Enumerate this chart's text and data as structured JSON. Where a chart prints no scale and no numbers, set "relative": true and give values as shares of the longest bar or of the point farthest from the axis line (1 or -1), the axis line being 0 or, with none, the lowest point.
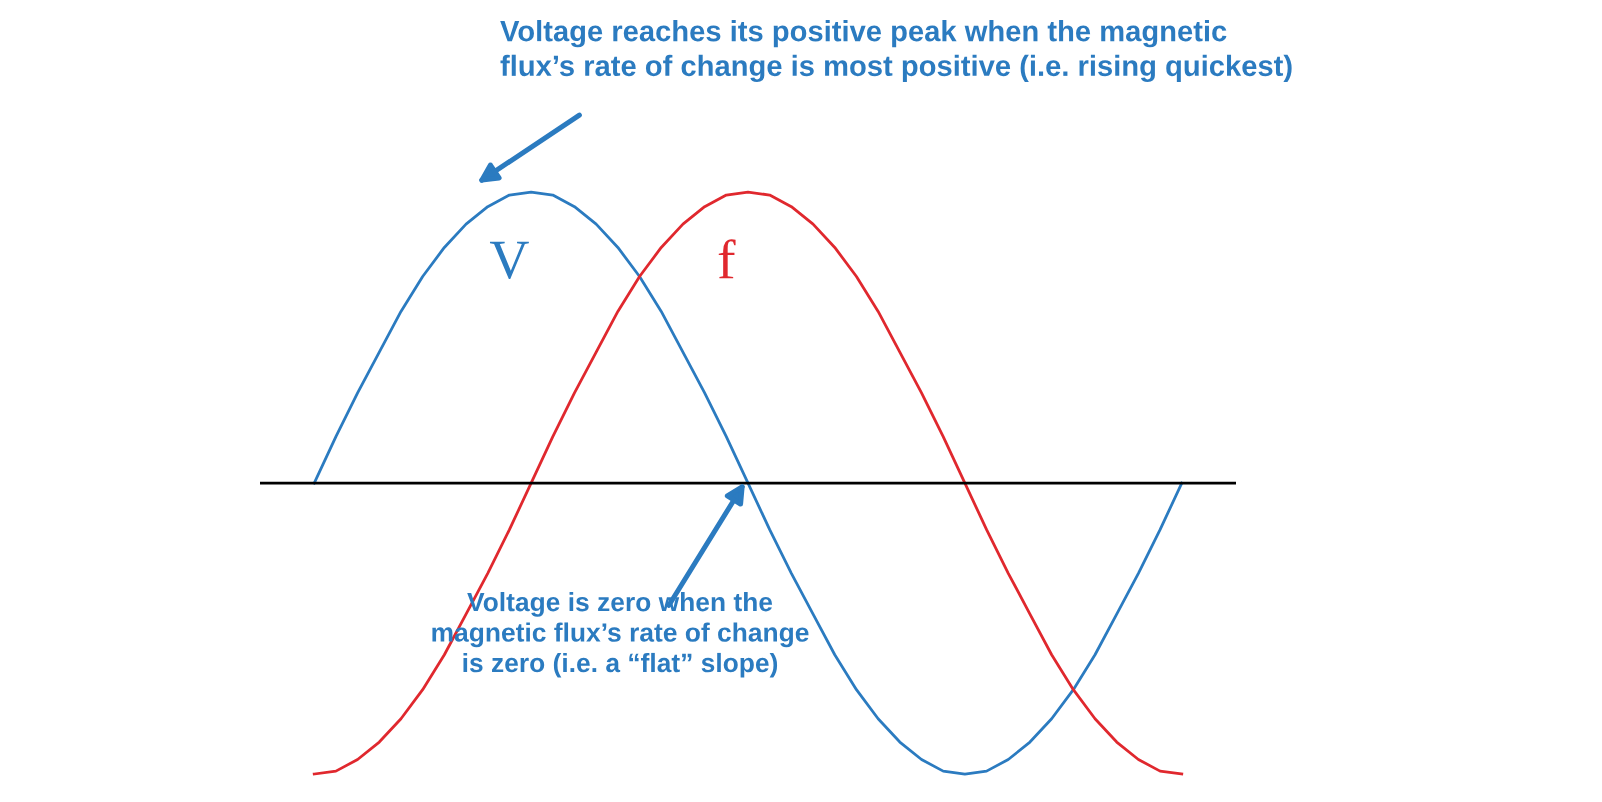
{
  "chart_data": {
    "type": "line",
    "relative": true,
    "categories": [
      null,
      null,
      null,
      null,
      null,
      null,
      null,
      null,
      null,
      null,
      null,
      null,
      null,
      null,
      null,
      null,
      null,
      null,
      null,
      null,
      null,
      null,
      null,
      null,
      null,
      null,
      null,
      null,
      null,
      null,
      null,
      null,
      null,
      null,
      null,
      null,
      null,
      null,
      null,
      null,
      null
    ],
    "series": [
      {
        "name": "V",
        "color": "#2b7bc0",
        "values": [
          0,
          0.16,
          0.31,
          0.45,
          0.59,
          0.71,
          0.81,
          0.89,
          0.95,
          0.99,
          1,
          0.99,
          0.95,
          0.89,
          0.81,
          0.71,
          0.59,
          0.45,
          0.31,
          0.16,
          0,
          -0.16,
          -0.31,
          -0.45,
          -0.59,
          -0.71,
          -0.81,
          -0.89,
          -0.95,
          -0.99,
          -1,
          -0.99,
          -0.95,
          -0.89,
          -0.81,
          -0.71,
          -0.59,
          -0.45,
          -0.31,
          -0.16,
          0
        ]
      },
      {
        "name": "f",
        "color": "#e0282e",
        "values": [
          -1,
          -0.99,
          -0.95,
          -0.89,
          -0.81,
          -0.71,
          -0.59,
          -0.45,
          -0.31,
          -0.16,
          0,
          0.16,
          0.31,
          0.45,
          0.59,
          0.71,
          0.81,
          0.89,
          0.95,
          0.99,
          1,
          0.99,
          0.95,
          0.89,
          0.81,
          0.71,
          0.59,
          0.45,
          0.31,
          0.16,
          0,
          -0.16,
          -0.31,
          -0.45,
          -0.59,
          -0.71,
          -0.81,
          -0.89,
          -0.95,
          -0.99,
          -1
        ]
      }
    ],
    "annotations": [
      "Voltage reaches its positive peak when the magnetic\nflux’s rate of change is most positive (i.e. rising quickest)",
      "Voltage is zero when the\nmagnetic flux’s rate of change\nis zero (i.e. a “flat” slope)"
    ],
    "marker": "none",
    "line_style": "solid"
  }
}
